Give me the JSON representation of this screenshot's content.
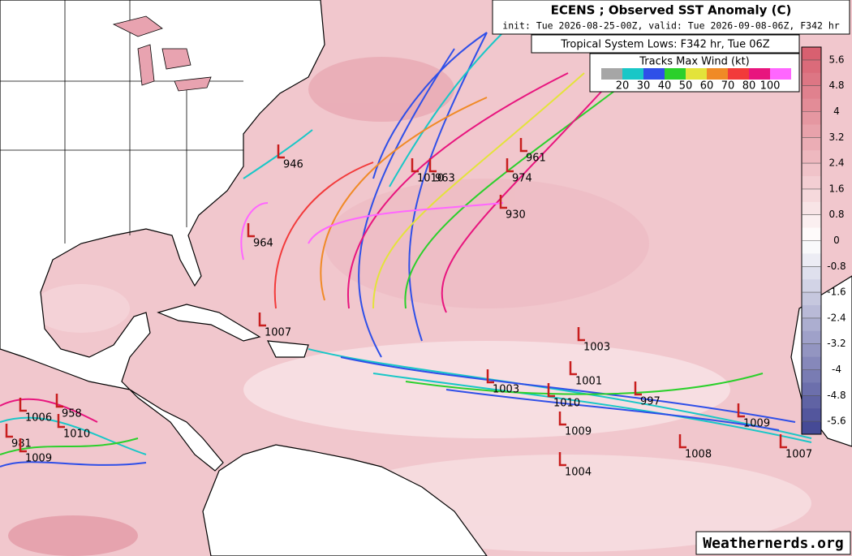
{
  "header": {
    "title": "ECENS ; Observed SST Anomaly (C)",
    "init": "init: Tue 2026-08-25-00Z, valid: Tue 2026-09-08-06Z, F342 hr",
    "subtitle": "Tropical System Lows: F342 hr, Tue 06Z"
  },
  "wind_legend": {
    "title": "Tracks Max Wind (kt)",
    "levels": [
      20,
      30,
      40,
      50,
      60,
      70,
      80,
      100
    ],
    "colors": [
      "#a6a6a6",
      "#19c7c7",
      "#2f4fe8",
      "#2bd02b",
      "#e3e33a",
      "#f08a26",
      "#f23a3a",
      "#e8157e",
      "#ff66ff"
    ]
  },
  "colorbar": {
    "lim": [
      -6,
      6
    ],
    "ticks": [
      5.6,
      4.8,
      4,
      3.2,
      2.4,
      1.6,
      0.8,
      0,
      -0.8,
      -1.6,
      -2.4,
      -3.2,
      -4,
      -4.8,
      -5.6
    ]
  },
  "lows": [
    946,
    964,
    1007,
    1010,
    963,
    974,
    961,
    930,
    1003,
    1001,
    1003,
    1010,
    997,
    1009,
    1008,
    1009,
    1007,
    1004,
    958,
    1006,
    1010,
    981,
    1009
  ],
  "watermark": "Weathernerds.org"
}
